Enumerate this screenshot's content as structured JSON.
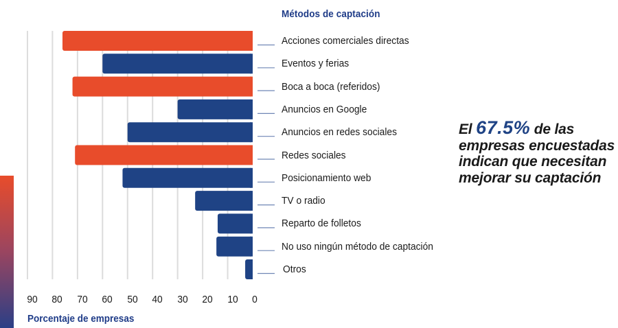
{
  "chart_data": {
    "type": "bar",
    "orientation": "horizontal",
    "direction": "right-to-left",
    "title": "Métodos de captación",
    "xlabel": "Porcentaje de empresas",
    "ylabel": "",
    "xlim": [
      0,
      90
    ],
    "xticks": [
      90,
      80,
      70,
      60,
      50,
      40,
      30,
      20,
      10,
      0
    ],
    "grid": true,
    "categories": [
      "Acciones comerciales directas",
      "Eventos y ferias",
      "Boca a boca (referidos)",
      "Anuncios en Google",
      "Anuncios en redes sociales",
      "Redes sociales",
      "Posicionamiento web",
      "TV o radio",
      "Reparto de folletos",
      "No uso ningún método de captación",
      "Otros"
    ],
    "values": [
      76,
      60,
      72,
      30,
      50,
      71,
      52,
      23,
      14,
      14.5,
      3
    ],
    "highlight": [
      true,
      false,
      true,
      false,
      false,
      true,
      false,
      false,
      false,
      false,
      false
    ],
    "colors": {
      "highlight": "#E84C2B",
      "default": "#1F4385",
      "grid": "#dcdcdc",
      "leader": "#6F86B5"
    }
  },
  "callout": {
    "prefix": "El ",
    "highlight": "67.5%",
    "suffix_line1": " de las",
    "line2": "empresas encuestadas",
    "line3": "indican que necesitan",
    "line4": "mejorar su captación"
  }
}
